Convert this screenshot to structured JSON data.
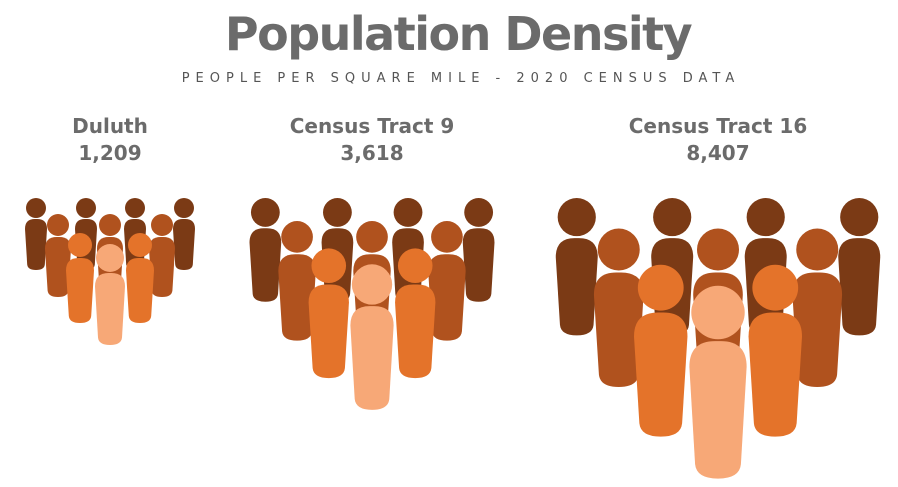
{
  "chart_data": {
    "type": "pictogram",
    "title": "Population Density",
    "subtitle": "PEOPLE PER SQUARE MILE - 2020 CENSUS DATA",
    "categories": [
      "Duluth",
      "Census Tract 9",
      "Census Tract 16"
    ],
    "values": [
      1209,
      3618,
      8407
    ],
    "value_labels": [
      "1,209",
      "3,618",
      "8,407"
    ],
    "colors": [
      "#7b3a15",
      "#b0521e",
      "#e4732a",
      "#f7a877"
    ]
  }
}
